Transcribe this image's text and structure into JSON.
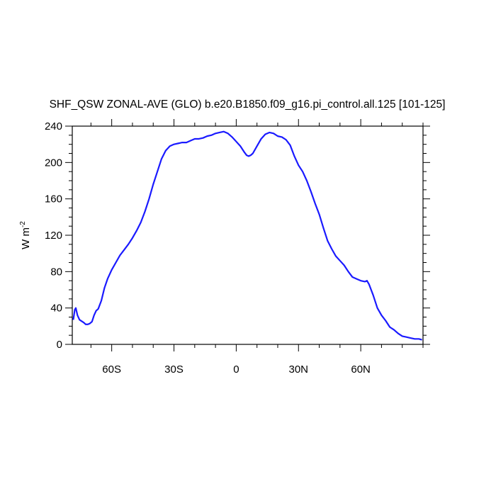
{
  "chart_data": {
    "type": "line",
    "title": "SHF_QSW ZONAL-AVE (GLO) b.e20.B1850.f09_g16.pi_control.all.125 [101-125]",
    "ylabel_main": "W m",
    "ylabel_exponent": "-2",
    "xlabel": "",
    "xlim": [
      -79,
      90
    ],
    "ylim": [
      0,
      240
    ],
    "x_ticks": [
      {
        "value": -60,
        "label": "60S"
      },
      {
        "value": -30,
        "label": "30S"
      },
      {
        "value": 0,
        "label": "0"
      },
      {
        "value": 30,
        "label": "30N"
      },
      {
        "value": 60,
        "label": "60N"
      }
    ],
    "y_ticks": [
      {
        "value": 0,
        "label": "0"
      },
      {
        "value": 40,
        "label": "40"
      },
      {
        "value": 80,
        "label": "80"
      },
      {
        "value": 120,
        "label": "120"
      },
      {
        "value": 160,
        "label": "160"
      },
      {
        "value": 200,
        "label": "200"
      },
      {
        "value": 240,
        "label": "240"
      }
    ],
    "grid": false,
    "line_color": "#1a1aff",
    "series": [
      {
        "x": [
          -78.5,
          -77.8,
          -77.3,
          -76.5,
          -75.5,
          -73.5,
          -72.5,
          -71.5,
          -70.5,
          -69.5,
          -68.5,
          -67.5,
          -66.5,
          -65,
          -63.5,
          -62,
          -60,
          -58,
          -56,
          -54,
          -52,
          -50,
          -48,
          -46,
          -44,
          -42,
          -40,
          -38,
          -36,
          -34,
          -32,
          -30,
          -28,
          -26,
          -24,
          -22,
          -20,
          -18,
          -16,
          -14,
          -12,
          -10,
          -8,
          -6,
          -4,
          -2,
          0,
          2,
          4,
          5,
          6,
          7,
          8,
          10,
          12,
          14,
          16,
          18,
          20,
          22,
          24,
          26,
          28,
          30,
          32,
          34,
          36,
          38,
          40,
          42,
          44,
          46,
          48,
          50,
          52,
          54,
          56,
          58,
          60,
          62,
          63,
          64,
          65,
          66,
          67,
          68,
          70,
          72,
          74,
          76,
          78,
          80,
          82,
          84,
          86,
          88,
          89.5
        ],
        "y": [
          27,
          38,
          40,
          32,
          27,
          24,
          22,
          22,
          23,
          25,
          32,
          37,
          39,
          48,
          62,
          72,
          82,
          90,
          98,
          104,
          110,
          117,
          125,
          134,
          146,
          160,
          176,
          190,
          204,
          213,
          218,
          220,
          221,
          222,
          222,
          224,
          226,
          226,
          227,
          229,
          230,
          232,
          233,
          234,
          232,
          228,
          223,
          218,
          211,
          208,
          207,
          208,
          210,
          218,
          226,
          231,
          233,
          232,
          229,
          228,
          225,
          219,
          207,
          197,
          190,
          180,
          168,
          155,
          143,
          128,
          114,
          105,
          97,
          92,
          87,
          80,
          74,
          72,
          70,
          69,
          70,
          66,
          60,
          54,
          47,
          40,
          32,
          26,
          19,
          16,
          12,
          9,
          8,
          7,
          6,
          6,
          5
        ]
      }
    ]
  }
}
